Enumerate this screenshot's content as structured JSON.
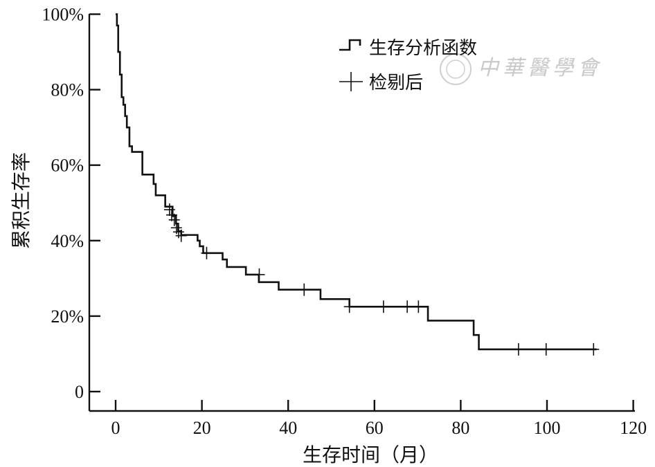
{
  "chart_data": {
    "type": "line",
    "step": true,
    "xlabel": "生存时间（月）",
    "ylabel": "累积生存率",
    "xlim": [
      -6,
      120
    ],
    "ylim": [
      -5,
      100
    ],
    "x_ticks": [
      {
        "value": 0,
        "label": "0"
      },
      {
        "value": 20,
        "label": "20"
      },
      {
        "value": 40,
        "label": "40"
      },
      {
        "value": 60,
        "label": "60"
      },
      {
        "value": 80,
        "label": "80"
      },
      {
        "value": 100,
        "label": "100"
      },
      {
        "value": 120,
        "label": "120"
      }
    ],
    "y_ticks": [
      {
        "value": 0,
        "label": "0"
      },
      {
        "value": 20,
        "label": "20%"
      },
      {
        "value": 40,
        "label": "40%"
      },
      {
        "value": 60,
        "label": "60%"
      },
      {
        "value": 80,
        "label": "80%"
      },
      {
        "value": 100,
        "label": "100%"
      }
    ],
    "legend": [
      {
        "name": "生存分析函数",
        "symbol": "step"
      },
      {
        "name": "检剔后",
        "symbol": "cross"
      }
    ],
    "legend_position": "top-right",
    "series": [
      {
        "name": "生存分析函数",
        "points": [
          [
            0,
            100
          ],
          [
            0.3,
            97
          ],
          [
            0.6,
            90
          ],
          [
            1,
            84
          ],
          [
            1.4,
            78
          ],
          [
            1.8,
            76
          ],
          [
            2.2,
            73
          ],
          [
            2.6,
            70
          ],
          [
            3.2,
            65
          ],
          [
            3.8,
            63.5
          ],
          [
            6.2,
            57.5
          ],
          [
            8.8,
            55
          ],
          [
            9.3,
            52
          ],
          [
            11.5,
            49
          ],
          [
            13.2,
            46.5
          ],
          [
            14,
            44.5
          ],
          [
            14.5,
            42.5
          ],
          [
            15.2,
            41.5
          ],
          [
            19,
            40
          ],
          [
            19.5,
            38.5
          ],
          [
            20.3,
            36.7
          ],
          [
            24.8,
            35
          ],
          [
            25.8,
            33
          ],
          [
            30.2,
            31
          ],
          [
            33.2,
            29
          ],
          [
            37.8,
            27
          ],
          [
            47.5,
            24.5
          ],
          [
            54.2,
            22.5
          ],
          [
            72.4,
            18.8
          ],
          [
            83,
            15
          ],
          [
            84.2,
            11.2
          ],
          [
            111.5,
            11.2
          ]
        ]
      }
    ],
    "censored": [
      [
        12.5,
        48.2
      ],
      [
        13,
        46.8
      ],
      [
        13.6,
        45.5
      ],
      [
        14.1,
        43.4
      ],
      [
        14.6,
        42.3
      ],
      [
        15.2,
        41.3
      ],
      [
        21.1,
        36.7
      ],
      [
        33.3,
        31
      ],
      [
        43.7,
        27
      ],
      [
        54.2,
        22.5
      ],
      [
        62.1,
        22.5
      ],
      [
        67.6,
        22.5
      ],
      [
        70.2,
        22.5
      ],
      [
        93.4,
        11.2
      ],
      [
        99.8,
        11.2
      ],
      [
        110.8,
        11.2
      ]
    ]
  },
  "watermark": {
    "text": "中華醫學會"
  },
  "colors": {
    "line": "#111111",
    "watermark": "#c9c9c9"
  }
}
